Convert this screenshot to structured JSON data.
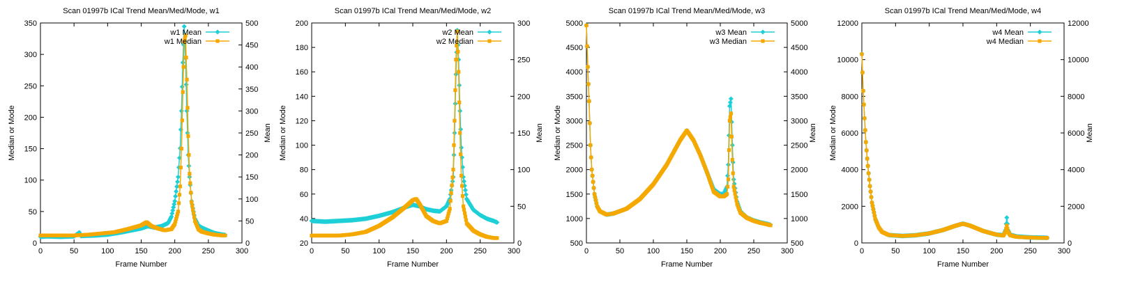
{
  "colors": {
    "mean": "#1ecfd6",
    "median": "#f5a800",
    "axis": "#000000"
  },
  "chart_data": [
    {
      "type": "line",
      "title": "Scan 01997b ICal Trend Mean/Med/Mode, w1",
      "xlabel": "Frame Number",
      "ylabel": "Median or Mode",
      "y2label": "Mean",
      "xlim": [
        0,
        300
      ],
      "xticks": [
        0,
        50,
        100,
        150,
        200,
        250,
        300
      ],
      "ylim": [
        0,
        350
      ],
      "yticks": [
        0,
        50,
        100,
        150,
        200,
        250,
        300,
        350
      ],
      "y2lim": [
        0,
        500
      ],
      "y2ticks": [
        0,
        50,
        100,
        150,
        200,
        250,
        300,
        350,
        400,
        450,
        500
      ],
      "legend": "top-right",
      "series": [
        {
          "name": "w1 Mean",
          "axis": "y2",
          "marker": "diamond",
          "color": "#1ecfd6",
          "x": [
            0,
            10,
            30,
            50,
            58,
            60,
            80,
            100,
            120,
            140,
            150,
            160,
            170,
            180,
            190,
            195,
            200,
            205,
            208,
            210,
            212,
            214,
            216,
            218,
            220,
            222,
            225,
            230,
            235,
            240,
            250,
            260,
            270,
            275
          ],
          "y": [
            14,
            15,
            14,
            15,
            24,
            16,
            17,
            19,
            24,
            30,
            33,
            38,
            35,
            38,
            45,
            60,
            95,
            150,
            215,
            300,
            410,
            492,
            420,
            300,
            200,
            150,
            95,
            55,
            40,
            35,
            28,
            22,
            19,
            18
          ]
        },
        {
          "name": "w1 Median",
          "axis": "y",
          "marker": "square",
          "color": "#f5a800",
          "x": [
            0,
            10,
            30,
            50,
            70,
            90,
            110,
            130,
            150,
            158,
            165,
            175,
            185,
            195,
            200,
            205,
            208,
            210,
            212,
            214,
            216,
            218,
            220,
            222,
            225,
            230,
            235,
            240,
            250,
            260,
            270,
            275
          ],
          "y": [
            12,
            12,
            12,
            12,
            13,
            15,
            17,
            22,
            28,
            33,
            27,
            23,
            20,
            22,
            30,
            50,
            90,
            150,
            240,
            320,
            330,
            260,
            170,
            110,
            65,
            35,
            22,
            18,
            15,
            13,
            12,
            12
          ]
        }
      ]
    },
    {
      "type": "line",
      "title": "Scan 01997b ICal Trend Mean/Med/Mode, w2",
      "xlabel": "Frame Number",
      "ylabel": "Median or Mode",
      "y2label": "Mean",
      "xlim": [
        0,
        300
      ],
      "xticks": [
        0,
        50,
        100,
        150,
        200,
        250,
        300
      ],
      "ylim": [
        20,
        200
      ],
      "yticks": [
        20,
        40,
        60,
        80,
        100,
        120,
        140,
        160,
        180,
        200
      ],
      "y2lim": [
        0,
        300
      ],
      "y2ticks": [
        0,
        50,
        100,
        150,
        200,
        250,
        300
      ],
      "legend": "top-right",
      "series": [
        {
          "name": "w2 Mean",
          "axis": "y2",
          "marker": "diamond",
          "color": "#1ecfd6",
          "x": [
            0,
            20,
            40,
            60,
            80,
            100,
            120,
            140,
            150,
            160,
            170,
            180,
            190,
            200,
            205,
            210,
            212,
            214,
            216,
            218,
            220,
            222,
            225,
            230,
            240,
            250,
            260,
            270,
            275
          ],
          "y": [
            30,
            29,
            30,
            31,
            33,
            37,
            42,
            49,
            52,
            50,
            46,
            44,
            43,
            50,
            60,
            90,
            150,
            230,
            290,
            250,
            180,
            130,
            90,
            60,
            45,
            38,
            33,
            30,
            28
          ]
        },
        {
          "name": "w2 Median",
          "axis": "y",
          "marker": "square",
          "color": "#f5a800",
          "x": [
            0,
            20,
            40,
            60,
            80,
            100,
            120,
            140,
            150,
            155,
            160,
            170,
            180,
            190,
            200,
            205,
            210,
            212,
            214,
            216,
            218,
            220,
            222,
            225,
            230,
            240,
            250,
            260,
            270,
            275
          ],
          "y": [
            26,
            26,
            26,
            27,
            29,
            34,
            41,
            50,
            55,
            56,
            52,
            42,
            38,
            36,
            38,
            48,
            80,
            120,
            170,
            193,
            160,
            110,
            75,
            50,
            36,
            30,
            27,
            25,
            24,
            24
          ]
        }
      ]
    },
    {
      "type": "line",
      "title": "Scan 01997b ICal Trend Mean/Med/Mode, w3",
      "xlabel": "Frame Number",
      "ylabel": "Median or Mode",
      "y2label": "Mean",
      "xlim": [
        0,
        300
      ],
      "xticks": [
        0,
        50,
        100,
        150,
        200,
        250,
        300
      ],
      "ylim": [
        500,
        5000
      ],
      "yticks": [
        500,
        1000,
        1500,
        2000,
        2500,
        3000,
        3500,
        4000,
        4500,
        5000
      ],
      "y2lim": [
        500,
        5000
      ],
      "y2ticks": [
        500,
        1000,
        1500,
        2000,
        2500,
        3000,
        3500,
        4000,
        4500,
        5000
      ],
      "legend": "top-right",
      "series": [
        {
          "name": "w3 Mean",
          "axis": "y2",
          "marker": "diamond",
          "color": "#1ecfd6",
          "x": [
            0,
            2,
            4,
            6,
            8,
            12,
            16,
            20,
            30,
            40,
            60,
            80,
            100,
            120,
            140,
            150,
            160,
            170,
            180,
            190,
            200,
            205,
            210,
            212,
            214,
            216,
            218,
            220,
            225,
            230,
            240,
            250,
            260,
            270,
            275
          ],
          "y": [
            4950,
            4100,
            3400,
            2500,
            2000,
            1500,
            1250,
            1150,
            1080,
            1100,
            1200,
            1400,
            1700,
            2100,
            2600,
            2800,
            2600,
            2300,
            1950,
            1600,
            1500,
            1500,
            1650,
            2100,
            3300,
            3450,
            2500,
            1800,
            1350,
            1150,
            1020,
            960,
            920,
            890,
            870
          ]
        },
        {
          "name": "w3 Median",
          "axis": "y",
          "marker": "square",
          "color": "#f5a800",
          "x": [
            0,
            2,
            4,
            6,
            8,
            12,
            16,
            20,
            30,
            40,
            60,
            80,
            100,
            120,
            140,
            150,
            160,
            170,
            180,
            190,
            200,
            205,
            210,
            212,
            214,
            216,
            218,
            220,
            225,
            230,
            240,
            250,
            260,
            270,
            275
          ],
          "y": [
            4950,
            4100,
            3400,
            2500,
            2000,
            1500,
            1250,
            1150,
            1080,
            1100,
            1200,
            1400,
            1700,
            2100,
            2600,
            2800,
            2600,
            2300,
            1950,
            1550,
            1450,
            1450,
            1500,
            1800,
            3000,
            3150,
            2200,
            1650,
            1300,
            1120,
            1010,
            950,
            910,
            880,
            860
          ]
        }
      ]
    },
    {
      "type": "line",
      "title": "Scan 01997b ICal Trend Mean/Med/Mode, w4",
      "xlabel": "Frame Number",
      "ylabel": "Median or Mode",
      "y2label": "Mean",
      "xlim": [
        0,
        300
      ],
      "xticks": [
        0,
        50,
        100,
        150,
        200,
        250,
        300
      ],
      "ylim": [
        0,
        12000
      ],
      "yticks": [
        0,
        2000,
        4000,
        6000,
        8000,
        10000,
        12000
      ],
      "y2lim": [
        0,
        12000
      ],
      "y2ticks": [
        0,
        2000,
        4000,
        6000,
        8000,
        10000,
        12000
      ],
      "legend": "top-right",
      "series": [
        {
          "name": "w4 Mean",
          "axis": "y2",
          "marker": "diamond",
          "color": "#1ecfd6",
          "x": [
            0,
            2,
            4,
            6,
            8,
            10,
            12,
            15,
            20,
            25,
            30,
            40,
            60,
            80,
            100,
            120,
            140,
            150,
            160,
            180,
            200,
            210,
            213,
            215,
            217,
            220,
            230,
            250,
            275
          ],
          "y": [
            10300,
            8300,
            6800,
            5500,
            4600,
            3800,
            3100,
            2200,
            1300,
            850,
            600,
            430,
            380,
            420,
            520,
            700,
            950,
            1050,
            950,
            650,
            450,
            420,
            700,
            1380,
            700,
            450,
            350,
            300,
            280
          ]
        },
        {
          "name": "w4 Median",
          "axis": "y",
          "marker": "square",
          "color": "#f5a800",
          "x": [
            0,
            2,
            4,
            6,
            8,
            10,
            12,
            15,
            20,
            25,
            30,
            40,
            60,
            80,
            100,
            120,
            140,
            150,
            160,
            180,
            200,
            210,
            213,
            215,
            217,
            220,
            230,
            250,
            275
          ],
          "y": [
            10300,
            8300,
            6800,
            5500,
            4600,
            3800,
            3100,
            2200,
            1300,
            850,
            600,
            430,
            380,
            420,
            520,
            700,
            950,
            1050,
            950,
            650,
            450,
            400,
            600,
            950,
            600,
            420,
            330,
            290,
            270
          ]
        }
      ]
    }
  ]
}
